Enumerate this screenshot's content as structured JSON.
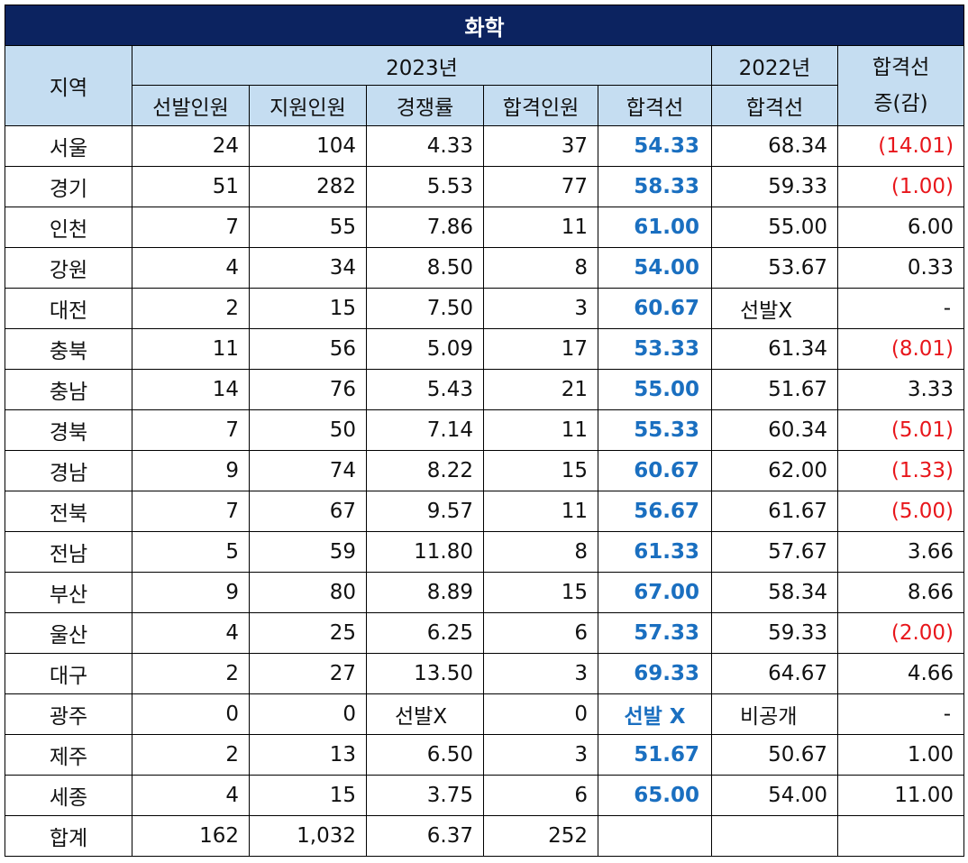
{
  "title": "화학",
  "header": {
    "region": "지역",
    "year2023": "2023년",
    "year2022": "2022년",
    "diff_line1": "합격선",
    "diff_line2": "증(감)",
    "columns": [
      "선발인원",
      "지원인원",
      "경쟁률",
      "합격인원",
      "합격선"
    ],
    "cutoff_2022": "합격선"
  },
  "rows": [
    {
      "region": "서울",
      "selected": "24",
      "applicants": "104",
      "ratio": "4.33",
      "passed": "37",
      "cutoff": "54.33",
      "prev_cutoff": "68.34",
      "diff": "(14.01)"
    },
    {
      "region": "경기",
      "selected": "51",
      "applicants": "282",
      "ratio": "5.53",
      "passed": "77",
      "cutoff": "58.33",
      "prev_cutoff": "59.33",
      "diff": "(1.00)"
    },
    {
      "region": "인천",
      "selected": "7",
      "applicants": "55",
      "ratio": "7.86",
      "passed": "11",
      "cutoff": "61.00",
      "prev_cutoff": "55.00",
      "diff": "6.00"
    },
    {
      "region": "강원",
      "selected": "4",
      "applicants": "34",
      "ratio": "8.50",
      "passed": "8",
      "cutoff": "54.00",
      "prev_cutoff": "53.67",
      "diff": "0.33"
    },
    {
      "region": "대전",
      "selected": "2",
      "applicants": "15",
      "ratio": "7.50",
      "passed": "3",
      "cutoff": "60.67",
      "prev_cutoff": "선발X",
      "diff": "-"
    },
    {
      "region": "충북",
      "selected": "11",
      "applicants": "56",
      "ratio": "5.09",
      "passed": "17",
      "cutoff": "53.33",
      "prev_cutoff": "61.34",
      "diff": "(8.01)"
    },
    {
      "region": "충남",
      "selected": "14",
      "applicants": "76",
      "ratio": "5.43",
      "passed": "21",
      "cutoff": "55.00",
      "prev_cutoff": "51.67",
      "diff": "3.33"
    },
    {
      "region": "경북",
      "selected": "7",
      "applicants": "50",
      "ratio": "7.14",
      "passed": "11",
      "cutoff": "55.33",
      "prev_cutoff": "60.34",
      "diff": "(5.01)"
    },
    {
      "region": "경남",
      "selected": "9",
      "applicants": "74",
      "ratio": "8.22",
      "passed": "15",
      "cutoff": "60.67",
      "prev_cutoff": "62.00",
      "diff": "(1.33)"
    },
    {
      "region": "전북",
      "selected": "7",
      "applicants": "67",
      "ratio": "9.57",
      "passed": "11",
      "cutoff": "56.67",
      "prev_cutoff": "61.67",
      "diff": "(5.00)"
    },
    {
      "region": "전남",
      "selected": "5",
      "applicants": "59",
      "ratio": "11.80",
      "passed": "8",
      "cutoff": "61.33",
      "prev_cutoff": "57.67",
      "diff": "3.66"
    },
    {
      "region": "부산",
      "selected": "9",
      "applicants": "80",
      "ratio": "8.89",
      "passed": "15",
      "cutoff": "67.00",
      "prev_cutoff": "58.34",
      "diff": "8.66"
    },
    {
      "region": "울산",
      "selected": "4",
      "applicants": "25",
      "ratio": "6.25",
      "passed": "6",
      "cutoff": "57.33",
      "prev_cutoff": "59.33",
      "diff": "(2.00)"
    },
    {
      "region": "대구",
      "selected": "2",
      "applicants": "27",
      "ratio": "13.50",
      "passed": "3",
      "cutoff": "69.33",
      "prev_cutoff": "64.67",
      "diff": "4.66"
    },
    {
      "region": "광주",
      "selected": "0",
      "applicants": "0",
      "ratio": "선발X",
      "passed": "0",
      "cutoff": "선발 X",
      "prev_cutoff": "비공개",
      "diff": "-"
    },
    {
      "region": "제주",
      "selected": "2",
      "applicants": "13",
      "ratio": "6.50",
      "passed": "3",
      "cutoff": "51.67",
      "prev_cutoff": "50.67",
      "diff": "1.00"
    },
    {
      "region": "세종",
      "selected": "4",
      "applicants": "15",
      "ratio": "3.75",
      "passed": "6",
      "cutoff": "65.00",
      "prev_cutoff": "54.00",
      "diff": "11.00"
    }
  ],
  "total": {
    "region": "합계",
    "selected": "162",
    "applicants": "1,032",
    "ratio": "6.37",
    "passed": "252"
  },
  "colors": {
    "title_bg": "#0c2360",
    "header_bg": "#c5ddf1",
    "cutoff_text": "#1a6fc0",
    "negative_text": "#e8161b"
  }
}
